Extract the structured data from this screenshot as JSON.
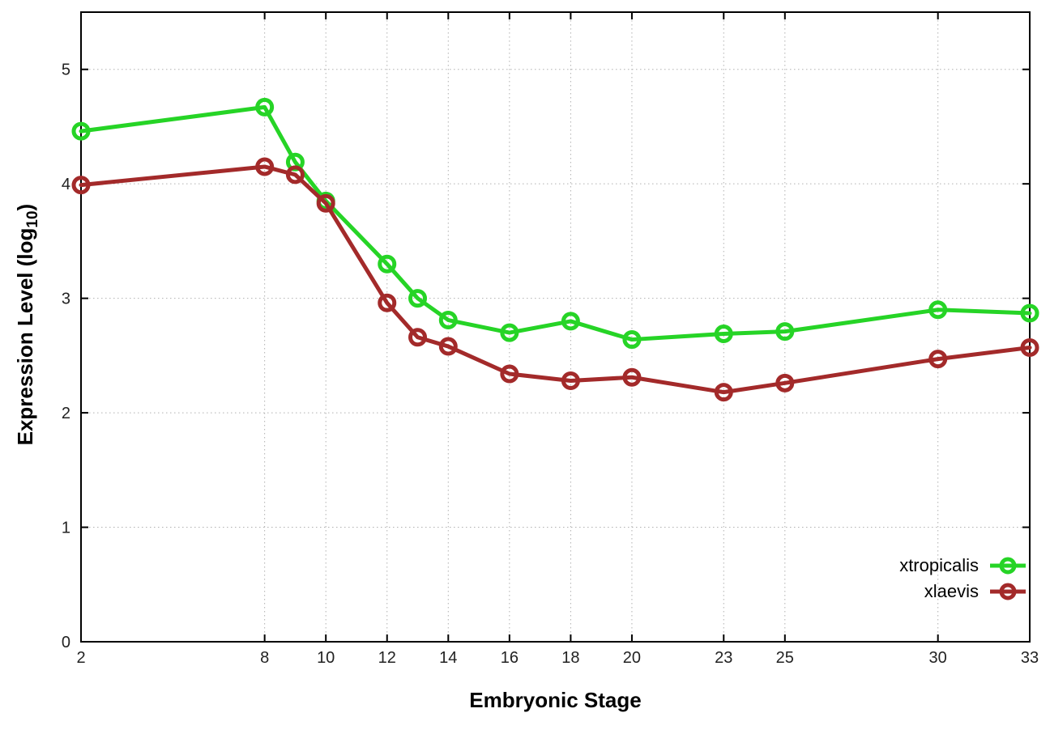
{
  "chart_data": {
    "type": "line",
    "title": "",
    "xlabel": "Embryonic Stage",
    "ylabel": "Expression Level (log10)",
    "ylabel_parts": {
      "prefix": "Expression Level (log",
      "sub": "10",
      "suffix": ")"
    },
    "xlim": [
      2,
      33
    ],
    "ylim": [
      0,
      5.5
    ],
    "xticks": [
      2,
      8,
      10,
      12,
      14,
      16,
      18,
      20,
      23,
      25,
      30,
      33
    ],
    "yticks": [
      0,
      1,
      2,
      3,
      4,
      5
    ],
    "grid": true,
    "legend_position": "inside-bottom-right",
    "x": [
      2,
      8,
      9,
      10,
      12,
      13,
      14,
      16,
      18,
      20,
      23,
      25,
      30,
      33
    ],
    "series": [
      {
        "name": "xtropicalis",
        "color": "#26d426",
        "values": [
          4.46,
          4.67,
          4.19,
          3.85,
          3.3,
          3.0,
          2.81,
          2.7,
          2.8,
          2.64,
          2.69,
          2.71,
          2.9,
          2.87
        ]
      },
      {
        "name": "xlaevis",
        "color": "#a32a2a",
        "values": [
          3.99,
          4.15,
          4.08,
          3.83,
          2.96,
          2.66,
          2.58,
          2.34,
          2.28,
          2.31,
          2.18,
          2.26,
          2.47,
          2.57
        ]
      }
    ],
    "colors": {
      "border": "#000000",
      "grid": "#b0b0b0",
      "tick_text": "#222222"
    }
  }
}
